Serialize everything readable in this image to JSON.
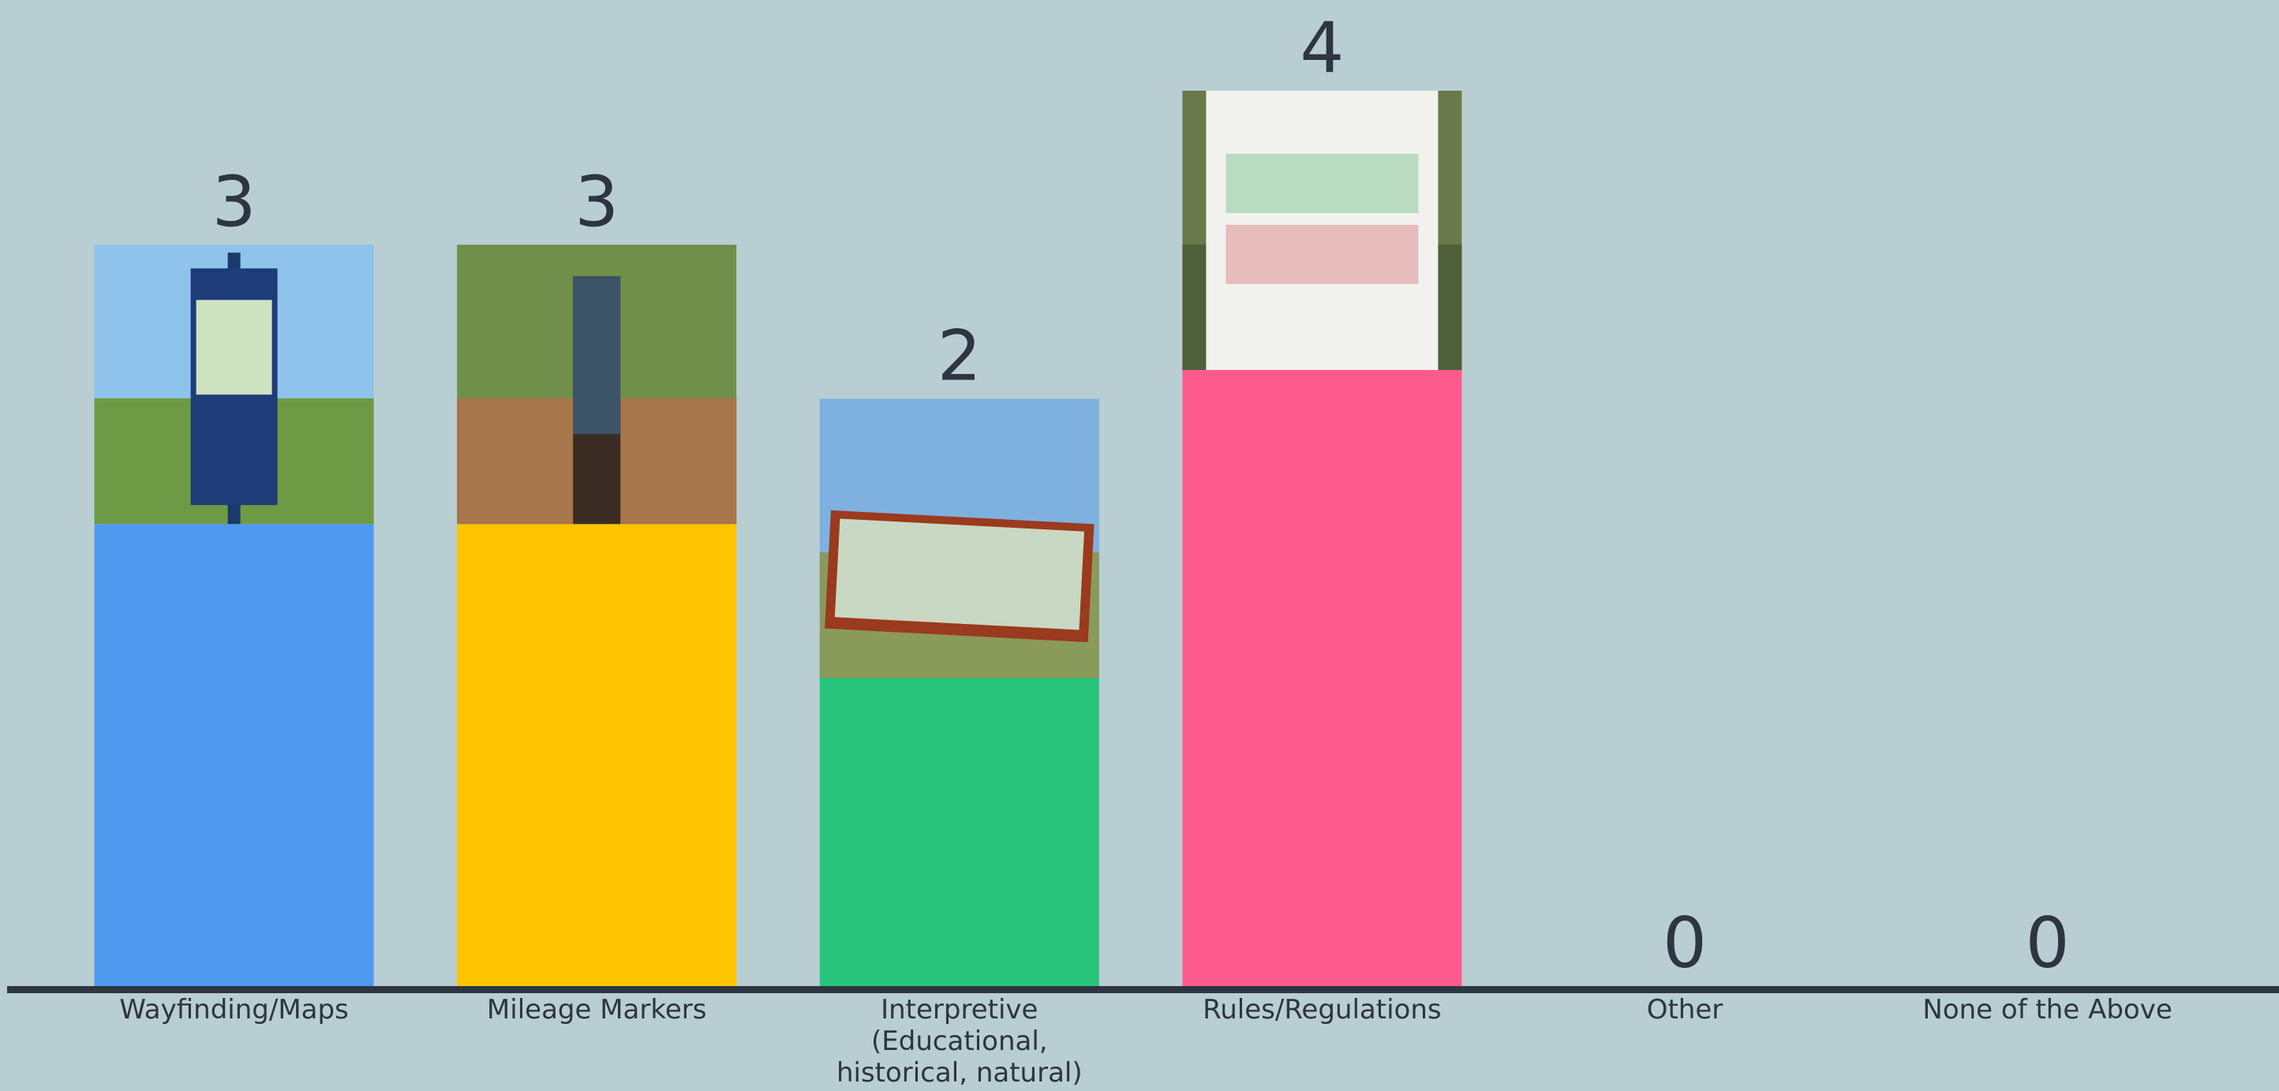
{
  "chart_data": {
    "type": "bar",
    "categories": [
      "Wayfinding/Maps",
      "Mileage Markers",
      "Interpretive (Educational, historical, natural)",
      "Rules/Regulations",
      "Other",
      "None of the Above"
    ],
    "values": [
      3,
      3,
      2,
      4,
      0,
      0
    ],
    "colors": [
      "#4f9aef",
      "#fec400",
      "#28c47c",
      "#fd5b8e",
      "#9aa7ab",
      "#9aa7ab"
    ]
  }
}
